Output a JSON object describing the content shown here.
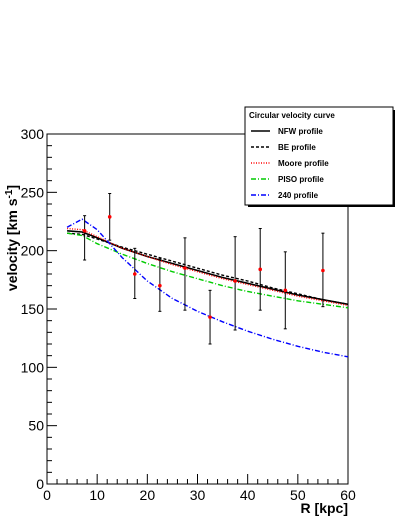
{
  "chart_data": {
    "type": "line",
    "xlabel": "R [kpc]",
    "ylabel_main": "velocity [km s",
    "ylabel_sup": "-1",
    "ylabel_close": "]",
    "xlim": [
      0,
      60
    ],
    "ylim": [
      0,
      300
    ],
    "x_ticks": [
      0,
      10,
      20,
      30,
      40,
      50,
      60
    ],
    "y_ticks": [
      0,
      50,
      100,
      150,
      200,
      250,
      300
    ],
    "grid": false,
    "legend_title": "Circular velocity curve",
    "legend_position": "top-right",
    "series": [
      {
        "name": "NFW profile",
        "color": "#000000",
        "style": "solid",
        "x": [
          4,
          7,
          10,
          15,
          20,
          25,
          30,
          35,
          40,
          45,
          50,
          55,
          60
        ],
        "y": [
          217,
          216,
          211,
          202,
          195,
          189,
          183,
          177,
          172,
          167,
          162,
          158,
          154
        ]
      },
      {
        "name": "BE profile",
        "color": "#000000",
        "style": "dashed",
        "x": [
          4,
          7,
          10,
          15,
          20,
          25,
          30,
          35,
          40,
          45,
          50,
          55,
          60
        ],
        "y": [
          215,
          214,
          210,
          203,
          197,
          191,
          185,
          179,
          174,
          168,
          163,
          158,
          154
        ]
      },
      {
        "name": "Moore profile",
        "color": "#ff0000",
        "style": "dotted",
        "x": [
          4,
          7,
          10,
          15,
          20,
          25,
          30,
          35,
          40,
          45,
          50,
          55,
          60
        ],
        "y": [
          219,
          218,
          212,
          202,
          195,
          188,
          182,
          176,
          171,
          166,
          161,
          157,
          153
        ]
      },
      {
        "name": "PISO profile",
        "color": "#00cc00",
        "style": "dashdot",
        "x": [
          4,
          7,
          10,
          15,
          20,
          25,
          30,
          35,
          40,
          45,
          50,
          55,
          60
        ],
        "y": [
          215,
          213,
          206,
          197,
          189,
          182,
          176,
          170,
          165,
          161,
          157,
          154,
          151
        ]
      },
      {
        "name": "240 profile",
        "color": "#0000ff",
        "style": "dashdot",
        "x": [
          4,
          7,
          10,
          15,
          20,
          25,
          30,
          35,
          40,
          45,
          50,
          55,
          60
        ],
        "y": [
          220,
          227,
          218,
          194,
          174,
          159,
          148,
          139,
          131,
          124,
          118,
          113,
          109
        ]
      }
    ],
    "data_points": {
      "x": [
        7.5,
        12.5,
        17.5,
        22.5,
        27.5,
        32.5,
        37.5,
        42.5,
        47.5,
        55
      ],
      "y": [
        217,
        229,
        180,
        170,
        185,
        143,
        174,
        184,
        166,
        183
      ],
      "err_low": [
        192,
        209,
        159,
        148,
        149,
        120,
        132,
        149,
        133,
        152
      ],
      "err_high": [
        230,
        249,
        202,
        193,
        211,
        166,
        212,
        219,
        199,
        215
      ],
      "color": "#ff0000"
    }
  }
}
